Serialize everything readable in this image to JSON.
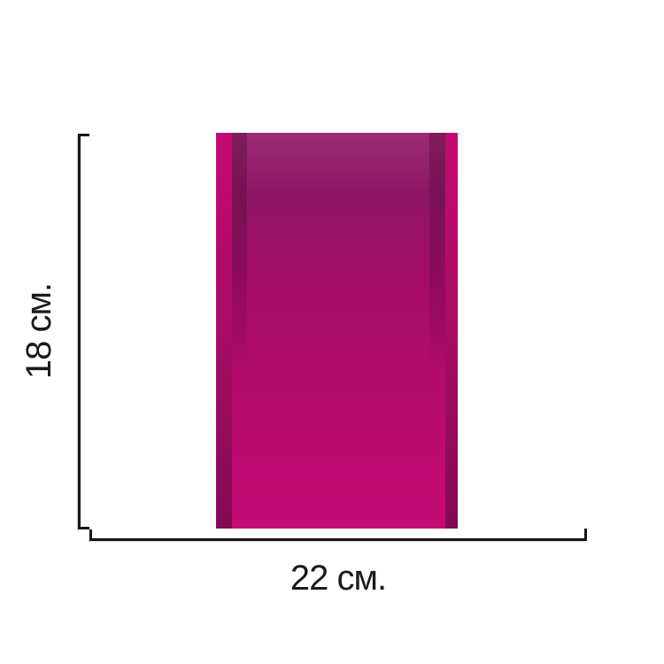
{
  "diagram": {
    "type": "product-dimension-diagram",
    "dimensions": {
      "height": {
        "label": "18 см.",
        "value": 18,
        "unit": "см"
      },
      "width": {
        "label": "22 см.",
        "value": 22,
        "unit": "см"
      }
    },
    "colors": {
      "background": "#ffffff",
      "body-top": "#9c2b73",
      "body-dark": "#8e1764",
      "body-mid": "#a50c68",
      "body-lower": "#b30b6e",
      "body-bottom": "#c40a74",
      "edge-bright": "#c50a72",
      "edge-mid": "#a80c66",
      "edge-dark": "#820a55",
      "fold-shadow": "rgba(63,3,43,0.32)",
      "fold-shadow-soft": "rgba(63,3,43,0.22)",
      "line": "#161616",
      "text": "#1b1b1b"
    }
  }
}
